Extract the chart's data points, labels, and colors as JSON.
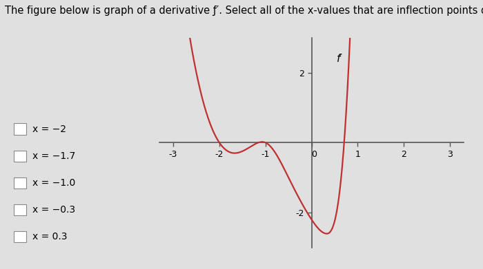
{
  "title": "The figure below is graph of a derivative f′. Select all of the x‑values that are inflection points of f.",
  "curve_color": "#c03030",
  "axis_color": "#555555",
  "background_color": "#e0e0e0",
  "xlim": [
    -3.3,
    3.3
  ],
  "ylim": [
    -3.0,
    3.0
  ],
  "xticks": [
    -3,
    -2,
    -1,
    0,
    1,
    2,
    3
  ],
  "yticks": [
    -2,
    2
  ],
  "fprime_label": "f′",
  "checkboxes": [
    "x = −2",
    "x = −1.7",
    "x = −1.0",
    "x = −0.3",
    "x = 0.3"
  ],
  "font_size_title": 10.5,
  "font_size_labels": 9,
  "font_size_checkboxes": 10,
  "curve_points_x": [
    -2.7,
    -2.0,
    -1.7,
    -1.3,
    -1.0,
    -0.5,
    0.0,
    0.3,
    0.6,
    0.85
  ],
  "curve_points_y": [
    3.5,
    0.0,
    -0.3,
    -0.1,
    0.0,
    -1.0,
    -2.2,
    -2.6,
    -1.5,
    3.5
  ]
}
